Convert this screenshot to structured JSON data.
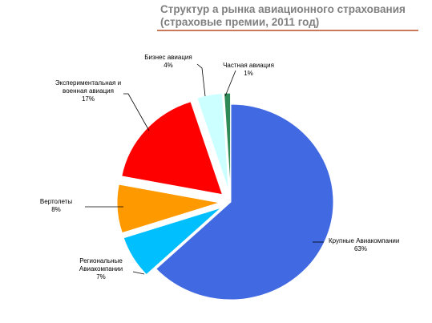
{
  "title": {
    "line1": "Структур а рынка авиационного страхования",
    "line2": "(страховые премии, 2011 год)",
    "rule_color": "#c87a5a"
  },
  "chart_data": {
    "type": "pie",
    "exploded": true,
    "slices": [
      {
        "label_lines": [
          "Крупные Авиакомпании"
        ],
        "pct_label": "63%",
        "value": 63,
        "color": "#4169e1"
      },
      {
        "label_lines": [
          "Региональные",
          "Авиакомпании"
        ],
        "pct_label": "7%",
        "value": 7,
        "color": "#00bfff"
      },
      {
        "label_lines": [
          "Вертолеты"
        ],
        "pct_label": "8%",
        "value": 8,
        "color": "#ff9900"
      },
      {
        "label_lines": [
          "Экспериментальная и",
          "военная авиация"
        ],
        "pct_label": "17%",
        "value": 17,
        "color": "#ff0000"
      },
      {
        "label_lines": [
          "Бизнес авиация"
        ],
        "pct_label": "4%",
        "value": 4,
        "color": "#ccffff"
      },
      {
        "label_lines": [
          "Частная авиация"
        ],
        "pct_label": "1%",
        "value": 1,
        "color": "#2e8b57"
      }
    ]
  }
}
